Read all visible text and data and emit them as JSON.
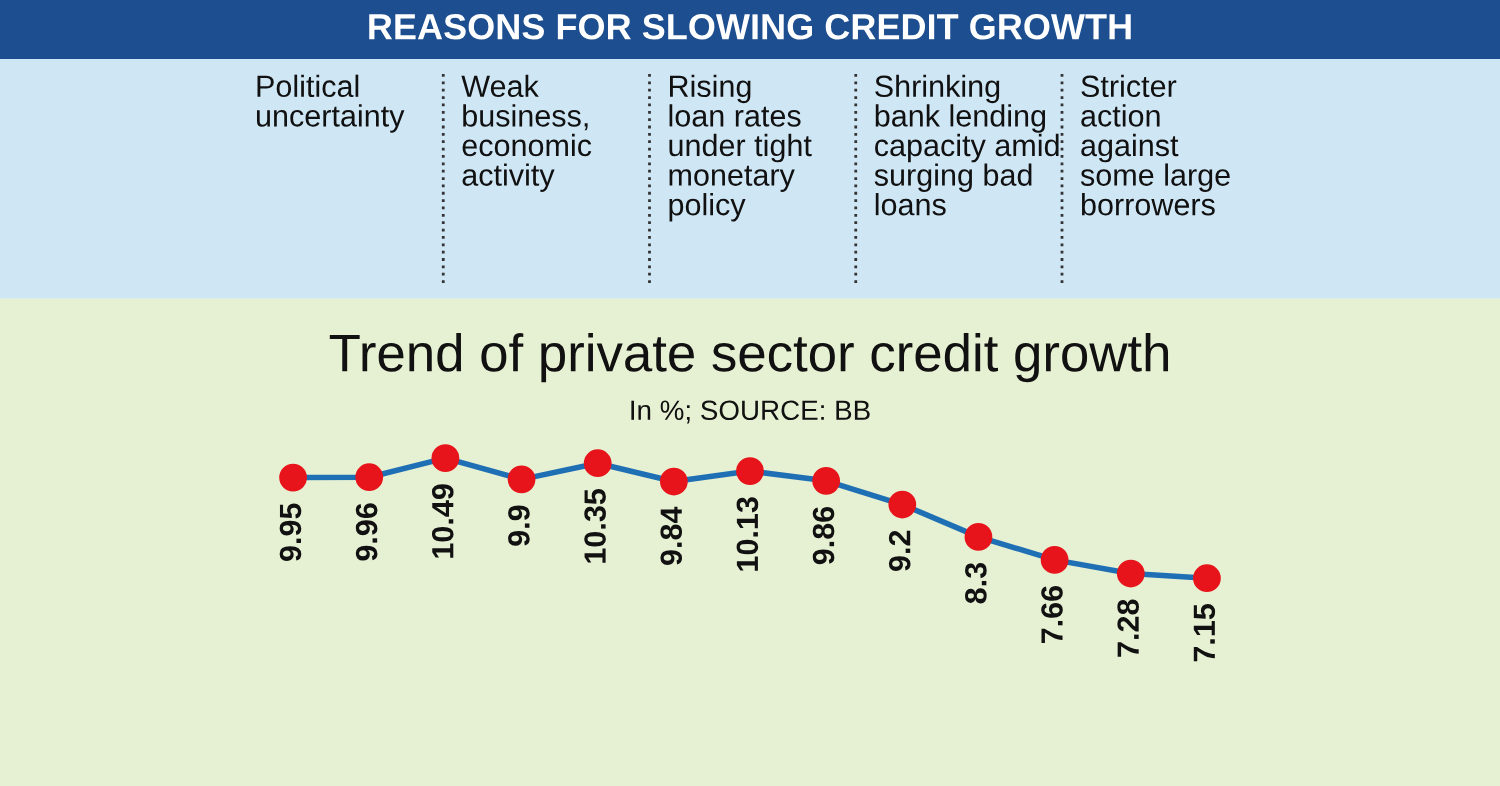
{
  "chart_data": {
    "type": "line",
    "title": "REASONS FOR SLOWING CREDIT GROWTH",
    "subtitle": "Trend of private sector credit growth",
    "annotations": [
      "Political\nuncertainty",
      "Weak\nbusiness,\neconomic\nactivity",
      "Rising\nloan rates\nunder tight\nmonetary\npolicy",
      "Shrinking\nbank lending\ncapacity amid\nsurging bad\nloans",
      "Stricter\naction\nagainst\nsome large\nborrowers",
      "In %; SOURCE: BB"
    ],
    "categories": [
      null,
      null,
      null,
      null,
      null,
      null,
      null,
      null,
      null,
      null,
      null,
      null,
      null
    ],
    "series": [
      {
        "color": "#1f6fb5",
        "values": [
          9.95,
          9.96,
          10.49,
          9.9,
          10.35,
          9.84,
          10.13,
          9.86,
          9.2,
          8.3,
          7.66,
          7.28,
          7.15
        ]
      }
    ],
    "marker": "circle",
    "line_style": "solid",
    "data_labels": true
  }
}
